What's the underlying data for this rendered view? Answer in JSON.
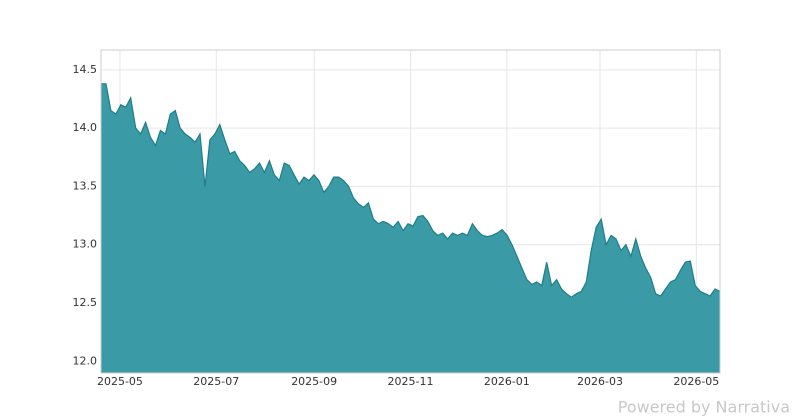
{
  "chart_data": {
    "type": "area",
    "color": "#3a9ba6",
    "line_color": "#1f7d88",
    "grid": true,
    "xlim": [
      "2025-04-19",
      "2026-05-16"
    ],
    "xticks": [
      "2025-05",
      "2025-07",
      "2025-09",
      "2025-11",
      "2026-01",
      "2026-03",
      "2026-05"
    ],
    "ylim": [
      11.9,
      14.67
    ],
    "yticks": [
      {
        "value": 12,
        "label": "12.0"
      },
      12.5,
      {
        "value": 13,
        "label": "13.0"
      },
      13.5,
      {
        "value": 14,
        "label": "14.0"
      },
      14.5
    ],
    "values": [
      14.38,
      14.38,
      14.15,
      14.12,
      14.2,
      14.18,
      14.26,
      14.0,
      13.95,
      14.05,
      13.92,
      13.85,
      13.98,
      13.95,
      14.12,
      14.15,
      14.0,
      13.95,
      13.92,
      13.88,
      13.95,
      13.5,
      13.9,
      13.95,
      14.03,
      13.9,
      13.78,
      13.8,
      13.72,
      13.68,
      13.62,
      13.65,
      13.7,
      13.62,
      13.72,
      13.6,
      13.55,
      13.7,
      13.68,
      13.6,
      13.52,
      13.58,
      13.55,
      13.6,
      13.55,
      13.45,
      13.5,
      13.58,
      13.58,
      13.55,
      13.5,
      13.4,
      13.35,
      13.32,
      13.36,
      13.22,
      13.18,
      13.2,
      13.18,
      13.15,
      13.2,
      13.12,
      13.18,
      13.16,
      13.24,
      13.25,
      13.2,
      13.12,
      13.08,
      13.1,
      13.05,
      13.1,
      13.08,
      13.1,
      13.08,
      13.18,
      13.12,
      13.08,
      13.07,
      13.08,
      13.1,
      13.13,
      13.08,
      13.0,
      12.9,
      12.8,
      12.7,
      12.66,
      12.68,
      12.65,
      12.85,
      12.65,
      12.7,
      12.62,
      12.58,
      12.55,
      12.58,
      12.6,
      12.68,
      12.95,
      13.15,
      13.22,
      13.0,
      13.08,
      13.05,
      12.95,
      13.0,
      12.9,
      13.05,
      12.9,
      12.8,
      12.72,
      12.58,
      12.56,
      12.62,
      12.68,
      12.7,
      12.78,
      12.85,
      12.86,
      12.65,
      12.6,
      12.58,
      12.56,
      12.62,
      12.6
    ]
  },
  "footer": "Powered by Narrativa"
}
